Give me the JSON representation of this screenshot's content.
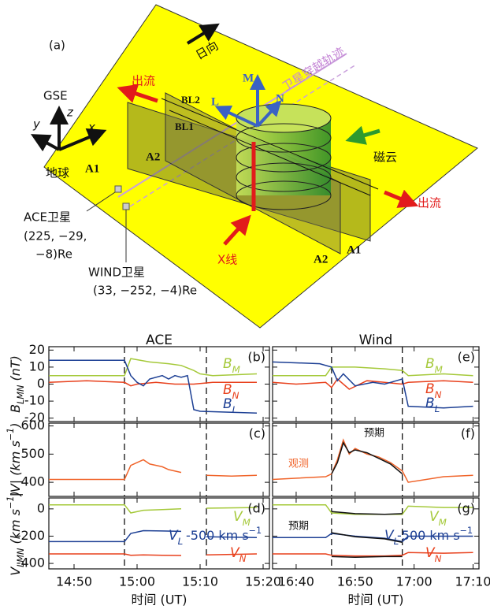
{
  "diagram": {
    "panel_label": "(a)",
    "sun": "日向",
    "trajectory": "卫星穿越轨迹",
    "outflow_left": "出流",
    "outflow_right": "出流",
    "gse": "GSE",
    "x": "x",
    "y": "y",
    "z": "z",
    "earth": "地球",
    "M": "M",
    "L": "L",
    "N": "N",
    "bl2": "BL2",
    "bl1": "BL1",
    "a1_left": "A1",
    "a2_left": "A2",
    "a2_right": "A2",
    "a1_right": "A1",
    "cloud": "磁云",
    "ace": "ACE卫星",
    "ace_pos1": "(225, −29,",
    "ace_pos2": "−8)Re",
    "wind": "WIND卫星",
    "wind_pos": "(33, −252, −4)Re",
    "xline": "X线"
  },
  "chart_data": [
    {
      "type": "line",
      "title": "ACE",
      "panel_label": "(b)",
      "y_label": [
        {
          "t": "B"
        },
        {
          "t": "LMN",
          "sub": true
        },
        {
          "t": " (nT)"
        }
      ],
      "ylim": [
        -22,
        22
      ],
      "yticks": [
        -20,
        -10,
        0,
        10,
        20
      ],
      "boundaries": [
        "14:58",
        "15:11"
      ],
      "series": [
        {
          "name": "BM",
          "color": "#a5c93a",
          "x": [
            "14:46",
            "14:58",
            "14:59",
            "15:02",
            "15:05",
            "15:07",
            "15:09",
            "15:10",
            "15:12",
            "15:19"
          ],
          "values": [
            5,
            5,
            15,
            13,
            12,
            11,
            8,
            6,
            5,
            6
          ]
        },
        {
          "name": "BN",
          "color": "#e8401c",
          "x": [
            "14:46",
            "14:52",
            "14:58",
            "14:59",
            "15:00",
            "15:03",
            "15:06",
            "15:09",
            "15:12",
            "15:19"
          ],
          "values": [
            1,
            2,
            1,
            -1,
            0,
            1,
            0,
            0,
            1,
            1
          ]
        },
        {
          "name": "BL",
          "color": "#1c3f94",
          "x": [
            "14:46",
            "14:58",
            "14:59",
            "15:00",
            "15:01",
            "15:02",
            "15:04",
            "15:05",
            "15:06",
            "15:07",
            "15:08",
            "15:09",
            "15:10",
            "15:19"
          ],
          "values": [
            14,
            14,
            5,
            1,
            -1,
            3,
            5,
            3,
            5,
            4,
            5,
            -15,
            -16,
            -17
          ]
        }
      ]
    },
    {
      "type": "line",
      "panel_label": "(c)",
      "y_label": [
        {
          "t": "|V| (km s"
        },
        {
          "t": "−1",
          "sup": true
        },
        {
          "t": ")"
        }
      ],
      "ylim": [
        350,
        610
      ],
      "yticks": [
        400,
        500,
        600
      ],
      "boundaries": [
        "14:58",
        "15:11"
      ],
      "series": [
        {
          "color": "#f0642a",
          "x": [
            "14:46",
            "14:58",
            "14:59",
            "15:00",
            "15:01",
            "15:02",
            "15:04",
            "15:05",
            "15:07",
            "15:09",
            "15:11",
            "15:15",
            "15:19"
          ],
          "values": [
            410,
            410,
            460,
            470,
            480,
            465,
            455,
            445,
            435,
            null,
            425,
            422,
            425
          ]
        }
      ]
    },
    {
      "type": "line",
      "panel_label": "(d)",
      "y_label": [
        {
          "t": "V"
        },
        {
          "t": "LMN",
          "sub": true
        },
        {
          "t": " (km s"
        },
        {
          "t": "−1",
          "sup": true
        },
        {
          "t": ")"
        }
      ],
      "ylim": [
        -440,
        80
      ],
      "yticks": [
        0,
        -200,
        -400
      ],
      "boundaries": [
        "14:58",
        "15:11"
      ],
      "xlim": [
        "14:46",
        "15:21"
      ],
      "xticks": [
        "14:50",
        "15:00",
        "15:10",
        "15:20"
      ],
      "x_label": "时间 (UT)",
      "annotations": [
        {
          "t": "-500 km s"
        },
        {
          "t": "−1",
          "sup": true
        }
      ],
      "series": [
        {
          "name": "VM",
          "color": "#a5c93a",
          "x": [
            "14:46",
            "14:58",
            "14:59",
            "15:01",
            "15:04",
            "15:07",
            "15:09",
            "15:11",
            "15:19"
          ],
          "values": [
            30,
            30,
            -30,
            -10,
            -5,
            0,
            null,
            5,
            10
          ]
        },
        {
          "name": "VL",
          "color": "#1c3f94",
          "x": [
            "14:46",
            "14:58",
            "14:59",
            "15:01",
            "15:04",
            "15:07",
            "15:09",
            "15:11",
            "15:19"
          ],
          "values": [
            -240,
            -240,
            -180,
            -160,
            -162,
            -165,
            null,
            -205,
            -210
          ]
        },
        {
          "name": "VN",
          "color": "#e8401c",
          "x": [
            "14:46",
            "14:58",
            "14:59",
            "15:01",
            "15:04",
            "15:07",
            "15:09",
            "15:11",
            "15:19"
          ],
          "values": [
            -330,
            -330,
            -340,
            -338,
            -340,
            -342,
            null,
            -338,
            -330
          ]
        }
      ]
    },
    {
      "type": "line",
      "title": "Wind",
      "panel_label": "(e)",
      "ylim": [
        -22,
        22
      ],
      "yticks": [
        -20,
        -10,
        0,
        10,
        20
      ],
      "boundaries": [
        "16:46",
        "16:58"
      ],
      "series": [
        {
          "name": "BM",
          "color": "#a5c93a",
          "x": [
            "16:36",
            "16:45",
            "16:46",
            "16:50",
            "16:55",
            "16:58",
            "16:59",
            "17:05",
            "17:10"
          ],
          "values": [
            5,
            5,
            10,
            10,
            9,
            8,
            5,
            6,
            5
          ]
        },
        {
          "name": "BN",
          "color": "#e8401c",
          "x": [
            "16:36",
            "16:40",
            "16:45",
            "16:46",
            "16:47",
            "16:49",
            "16:52",
            "16:55",
            "16:58",
            "16:59",
            "17:05",
            "17:10"
          ],
          "values": [
            1,
            0,
            1,
            -2,
            3,
            -3,
            2,
            1,
            0,
            1,
            2,
            1
          ]
        },
        {
          "name": "BL",
          "color": "#1c3f94",
          "x": [
            "16:36",
            "16:44",
            "16:46",
            "16:47",
            "16:48",
            "16:50",
            "16:53",
            "16:55",
            "16:57",
            "16:58",
            "16:59",
            "17:05",
            "17:10"
          ],
          "values": [
            13,
            12,
            10,
            2,
            6,
            -1,
            1,
            0,
            2,
            3,
            -13,
            -14,
            -13
          ]
        }
      ]
    },
    {
      "type": "line",
      "panel_label": "(f)",
      "notes": [
        "预期",
        "观测"
      ],
      "ylim": [
        350,
        610
      ],
      "yticks": [
        400,
        500,
        600
      ],
      "boundaries": [
        "16:46",
        "16:58"
      ],
      "series": [
        {
          "color": "#f0642a",
          "x": [
            "16:36",
            "16:45",
            "16:46",
            "16:47",
            "16:48",
            "16:49",
            "16:50",
            "16:52",
            "16:54",
            "16:56",
            "16:58",
            "16:59",
            "17:05",
            "17:10"
          ],
          "values": [
            410,
            420,
            430,
            480,
            550,
            500,
            520,
            500,
            490,
            470,
            440,
            400,
            420,
            425
          ]
        },
        {
          "color": "#111111",
          "x": [
            "16:46",
            "16:47",
            "16:48",
            "16:49",
            "16:50",
            "16:52",
            "16:54",
            "16:56",
            "16:58"
          ],
          "values": [
            430,
            470,
            540,
            505,
            515,
            505,
            485,
            465,
            430
          ]
        }
      ]
    },
    {
      "type": "line",
      "panel_label": "(g)",
      "notes": [
        "预期"
      ],
      "ylim": [
        -440,
        80
      ],
      "yticks": [
        0,
        -200,
        -400
      ],
      "boundaries": [
        "16:46",
        "16:58"
      ],
      "xlim": [
        "16:36",
        "17:11"
      ],
      "xticks": [
        "16:40",
        "16:50",
        "17:00",
        "17:10"
      ],
      "x_label": "时间 (UT)",
      "annotations": [
        {
          "t": "-500 km s"
        },
        {
          "t": "−1",
          "sup": true
        }
      ],
      "series": [
        {
          "name": "VM",
          "color": "#a5c93a",
          "x": [
            "16:36",
            "16:45",
            "16:46",
            "16:50",
            "16:55",
            "16:58",
            "16:59",
            "17:05",
            "17:10"
          ],
          "values": [
            30,
            30,
            -30,
            -40,
            -40,
            -40,
            20,
            10,
            10
          ]
        },
        {
          "name": "VL",
          "color": "#1c3f94",
          "x": [
            "16:36",
            "16:45",
            "16:46",
            "16:50",
            "16:55",
            "16:58",
            "16:59",
            "17:05",
            "17:10"
          ],
          "values": [
            -210,
            -210,
            -180,
            -200,
            -215,
            -240,
            -200,
            -200,
            -200
          ]
        },
        {
          "name": "VN",
          "color": "#e8401c",
          "x": [
            "16:36",
            "16:45",
            "16:46",
            "16:50",
            "16:55",
            "16:58",
            "16:59",
            "17:05",
            "17:10"
          ],
          "values": [
            -330,
            -330,
            -340,
            -345,
            -345,
            -340,
            -320,
            -325,
            -320
          ]
        },
        {
          "color": "#111111",
          "x": [
            "16:46",
            "16:50",
            "16:55",
            "16:58"
          ],
          "values": [
            -20,
            -35,
            -40,
            -35
          ]
        },
        {
          "color": "#111111",
          "x": [
            "16:46",
            "16:50",
            "16:55",
            "16:58"
          ],
          "values": [
            -175,
            -205,
            -220,
            -245
          ]
        },
        {
          "color": "#111111",
          "x": [
            "16:46",
            "16:50",
            "16:55",
            "16:58"
          ],
          "values": [
            -350,
            -355,
            -350,
            -350
          ]
        }
      ]
    }
  ]
}
